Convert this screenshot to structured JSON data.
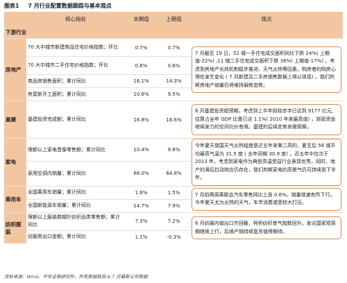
{
  "caption": {
    "label": "图表1",
    "title": "7 月行业配置数据跟踪与基本观点"
  },
  "headers": {
    "category": "",
    "indicator": "核心指标",
    "current": "本期值",
    "previous": "上期值",
    "view": "观点"
  },
  "section": "下游行业",
  "rows": {
    "r0": {
      "indicator": "70 大中城市新建商品住宅价格指数；环比",
      "current": "0.7%",
      "previous": "0.7%"
    },
    "r1": {
      "indicator": "70 大中城市二手住宅价格指数；环比",
      "current": "0.6%",
      "previous": "0.6%"
    },
    "r2": {
      "indicator": "商品房销售面积；累计同比",
      "current": "16.1%",
      "previous": "14.3%"
    },
    "r3": {
      "indicator": "房屋新开工面积；累计同比",
      "current": "10.6%",
      "previous": "9.5%"
    },
    "r4": {
      "indicator": "基建投资完成额；累计同比",
      "current": "16.8%",
      "previous": "16.6%"
    },
    "r5": {
      "indicator": "限额以上家电音像零售额；累计同比",
      "current": "10.4%",
      "previous": "9.6%"
    },
    "r6": {
      "indicator": "家用空调内销量；累计同比",
      "current": "66.0%",
      "previous": "64.8%"
    },
    "r7": {
      "indicator": "全国乘用车销量；累计同比",
      "current": "1.6%",
      "previous": "1.5%"
    },
    "r8": {
      "indicator": "全国新能源车销量；累计同比",
      "current": "14.7%",
      "previous": "7.9%"
    },
    "r9": {
      "indicator": "限额以上服装鞋帽针纺织品类零售额；累计同比",
      "current": "7.3%",
      "previous": "7.2%"
    },
    "r10": {
      "indicator": "纺服类出口金额；累计同比",
      "current": "1.1%",
      "previous": "-0.3%"
    }
  },
  "categories": {
    "realestate": "房地产",
    "infrastructure": "基建",
    "appliances": "家电",
    "passenger_car": "乘用车",
    "textile": "纺织服装"
  },
  "views": {
    "realestate": "7 月截至 19 日，52 城一手住宅成交面积同比下跌 24%( 上期值-22%) ,11 城二手住宅成交面积下跌 36%( 上期值-17%) 。考虑到房地产长效机制稳步推进、天气炎热等因素，购房者的购房心理在发生变化 ( 7 月新建及二手房销售数据上得以体现) 。我们判断房地产销量仍将维持弱势态势。",
    "infrastructure": "6 月基建投资超预期，考虑到上半年财政赤字已达到 9177 亿元,估算占全年 GDP 比重已达 1.1%( 2010 年来最高值) ，财政资金继续发力的空间比价有限。基建的后续走势尚需观察。",
    "appliances": "今年夏天我国天气炎热程度是近五年来第二高的，夏至后 58 城平均最高气温为 31.5 度 ( 去年同期 30.9 度) ，近五年中仅次于 2013 年。考虑到家电作为典型高温受益行业表现优秀，同时，地产的滞后拉动效应仍存在，我们判断家电的高景气仍可持续到下半年。",
    "passenger_car": "7 月前两周乘联会汽车零售同比上涨 0.6%，销量增速有所下行。今年夏天尤为炎热的天气，车市消费或受较大打压。",
    "textile": "6 月纺服内销出口齐回暖，柯桥纺织景气指数回升。发达国家短周期继续上行，后续产销持续复苏值得期待。"
  },
  "footer": "资料来源：Wind、平安证券研究所，所有数据取自 6-7 月最新公布数据"
}
